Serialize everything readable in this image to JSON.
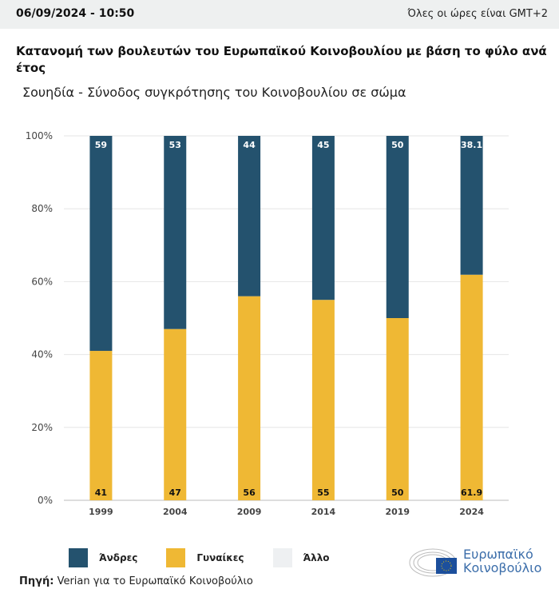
{
  "header": {
    "datetime": "06/09/2024 - 10:50",
    "timezone_note": "Όλες οι ώρες είναι GMT+2"
  },
  "title": "Κατανομή των βουλευτών του Ευρωπαϊκού Κοινοβουλίου με βάση το φύλο ανά έτος",
  "subtitle": "Σουηδία - Σύνοδος συγκρότησης του Κοινοβουλίου σε σώμα",
  "chart_data": {
    "type": "bar",
    "stacked": true,
    "categories": [
      "1999",
      "2004",
      "2009",
      "2014",
      "2019",
      "2024"
    ],
    "series": [
      {
        "name": "Γυναίκες",
        "color": "#efb834",
        "values": [
          41,
          47,
          56,
          55,
          50,
          61.9
        ]
      },
      {
        "name": "Άνδρες",
        "color": "#24526e",
        "values": [
          59,
          53,
          44,
          45,
          50,
          38.1
        ]
      },
      {
        "name": "Άλλο",
        "color": "#eef0f2",
        "values": [
          0,
          0,
          0,
          0,
          0,
          0
        ]
      }
    ],
    "yticks": [
      "0%",
      "20%",
      "40%",
      "60%",
      "80%",
      "100%"
    ],
    "ylim": [
      0,
      100
    ],
    "grid": true,
    "legend_placement": "bottom-left"
  },
  "legend": [
    "Άνδρες",
    "Γυναίκες",
    "Άλλο"
  ],
  "source": {
    "label": "Πηγή:",
    "text": " Verian για το Ευρωπαϊκό Κοινοβούλιο"
  },
  "logo": {
    "line1": "Ευρωπαϊκό",
    "line2": "Κοινοβούλιο"
  }
}
